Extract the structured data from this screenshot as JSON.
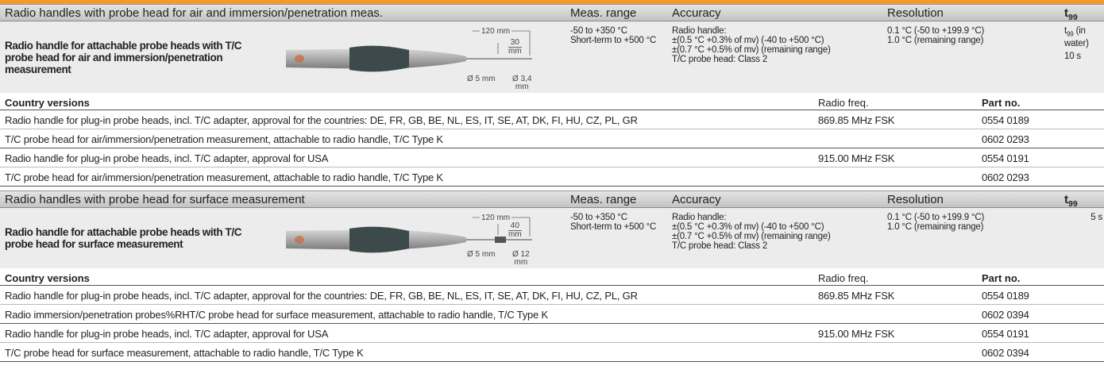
{
  "sections": [
    {
      "header": {
        "title": "Radio handles with probe head for air and immersion/penetration meas.",
        "meas_range": "Meas. range",
        "accuracy": "Accuracy",
        "resolution": "Resolution",
        "t99": {
          "t": "t",
          "sub": "99"
        }
      },
      "product": {
        "name": "Radio handle for attachable probe heads with T/C probe head for air and immersion/penetration measurement",
        "dimensions": {
          "length": "120 mm",
          "tip_length": [
            "30",
            "mm"
          ],
          "handle_diameter": "Ø 5 mm",
          "tip_diameter": [
            "Ø 3,4",
            "mm"
          ]
        },
        "meas_range": [
          "-50 to +350 °C",
          "Short-term to +500 °C"
        ],
        "accuracy": [
          "Radio handle:",
          "±(0.5 °C +0.3% of mv) (-40 to +500 °C)",
          "±(0.7 °C +0.5% of mv) (remaining range)",
          "T/C probe head: Class 2"
        ],
        "resolution": [
          "0.1 °C (-50 to +199.9 °C)",
          "1.0 °C (remaining range)"
        ],
        "t99": {
          "t": "t",
          "sub": "99",
          "rest": "(in water)",
          "value": "10 s"
        }
      },
      "country_versions": {
        "header": {
          "description": "Country versions",
          "radio_freq": "Radio freq.",
          "part_no": "Part no."
        },
        "rows": [
          {
            "description": "Radio handle for plug-in probe heads, incl. T/C adapter, approval for the countries: DE, FR, GB, BE, NL, ES, IT, SE, AT, DK, FI, HU, CZ, PL, GR",
            "radio_freq": "869.85 MHz FSK",
            "part_no": "0554 0189"
          },
          {
            "description": "T/C probe head for air/immersion/penetration measurement, attachable to radio handle, T/C Type K",
            "part_no": "0602 0293"
          },
          {
            "description": "Radio handle for plug-in probe heads, incl. T/C adapter, approval for USA",
            "radio_freq": "915.00 MHz FSK",
            "part_no": "0554 0191"
          },
          {
            "description": "T/C probe head for air/immersion/penetration measurement, attachable to radio handle, T/C Type K",
            "part_no": "0602 0293"
          }
        ]
      }
    },
    {
      "header": {
        "title": "Radio handles with probe head for surface measurement",
        "meas_range": "Meas. range",
        "accuracy": "Accuracy",
        "resolution": "Resolution",
        "t99": {
          "t": "t",
          "sub": "99"
        }
      },
      "product": {
        "name": "Radio handle for attachable probe heads with T/C probe head for surface measurement",
        "dimensions": {
          "length": "120 mm",
          "tip_length": [
            "40",
            "mm"
          ],
          "handle_diameter": "Ø 5 mm",
          "tip_diameter": [
            "Ø 12",
            "mm"
          ]
        },
        "meas_range": [
          "-50 to +350 °C",
          "Short-term to +500 °C"
        ],
        "accuracy": [
          "Radio handle:",
          "±(0.5 °C +0.3% of mv) (-40 to +500 °C)",
          "±(0.7 °C +0.5% of mv) (remaining range)",
          "T/C probe head: Class 2"
        ],
        "resolution": [
          "0.1 °C (-50 to +199.9 °C)",
          "1.0 °C (remaining range)"
        ],
        "t99": {
          "value": "5 s"
        }
      },
      "country_versions": {
        "header": {
          "description": "Country versions",
          "radio_freq": "Radio freq.",
          "part_no": "Part no."
        },
        "rows": [
          {
            "description": "Radio handle for plug-in probe heads, incl. T/C adapter, approval for the countries: DE, FR, GB, BE, NL, ES, IT, SE, AT, DK, FI, HU, CZ, PL, GR",
            "radio_freq": "869.85 MHz FSK",
            "part_no": "0554 0189"
          },
          {
            "description": "Radio immersion/penetration probes%RHT/C probe head for surface measurement, attachable to radio handle, T/C Type K",
            "part_no": "0602 0394"
          },
          {
            "description": "Radio handle for plug-in probe heads, incl. T/C adapter, approval for USA",
            "radio_freq": "915.00 MHz FSK",
            "part_no": "0554 0191"
          },
          {
            "description": "T/C probe head for surface measurement, attachable to radio handle, T/C Type K",
            "part_no": "0602 0394"
          }
        ]
      }
    }
  ]
}
